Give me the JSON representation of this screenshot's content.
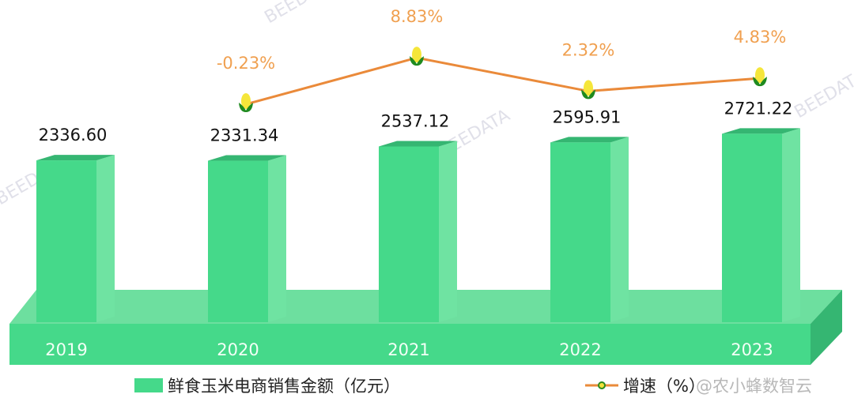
{
  "chart_data": {
    "type": "bar",
    "categories": [
      "2019",
      "2020",
      "2021",
      "2022",
      "2023"
    ],
    "series": [
      {
        "name": "鲜食玉米电商销售金额（亿元）",
        "type": "bar",
        "values": [
          2336.6,
          2331.34,
          2537.12,
          2595.91,
          2721.22
        ],
        "labels": [
          "2336.60",
          "2331.34",
          "2537.12",
          "2595.91",
          "2721.22"
        ],
        "color": "#45d98a"
      },
      {
        "name": "增速（%）",
        "type": "line",
        "values": [
          null,
          -0.23,
          8.83,
          2.32,
          4.83
        ],
        "labels": [
          "",
          "-0.23%",
          "8.83%",
          "2.32%",
          "4.83%"
        ],
        "color": "#ea8a3a",
        "marker": "corn-icon"
      }
    ],
    "legend": "bottom",
    "grid": false
  },
  "watermark": "@农小蜂数智云",
  "colors": {
    "bar_front": "#45d98a",
    "bar_side": "#6fe3a2",
    "platform_dark": "#35b672",
    "line": "#ea8a3a",
    "pct_label": "#f0a050"
  }
}
